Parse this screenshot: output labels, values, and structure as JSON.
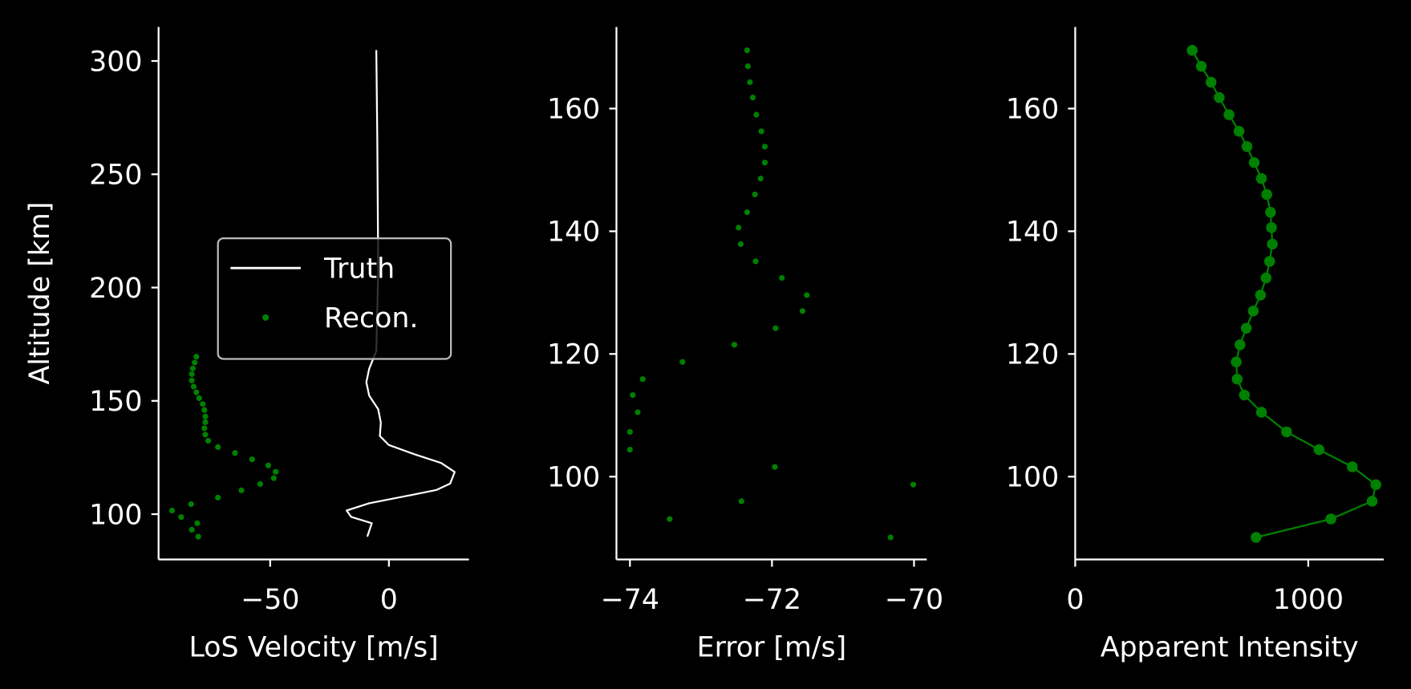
{
  "chart_data": [
    {
      "type": "line",
      "xlabel": "LoS Velocity [m/s]",
      "ylabel": "Altitude [km]",
      "xlim": [
        -97,
        33.7
      ],
      "ylim": [
        80,
        315
      ],
      "xticks": [
        {
          "value": -50,
          "label": "−50"
        },
        0
      ],
      "yticks": [
        100,
        150,
        200,
        250,
        300
      ],
      "legend": "center right",
      "series": [
        {
          "name": "Truth",
          "color": "#ffffff",
          "mode": "line",
          "x": [
            -5.3,
            -4.9,
            -4.5,
            -5.3,
            -8.3,
            -9.5,
            -8.3,
            -4.5,
            -3.4,
            -3.8,
            0,
            10.6,
            22,
            27.7,
            25.8,
            20.1,
            6.8,
            -8.3,
            -17.8,
            -15.9,
            -7.2,
            -9.1
          ],
          "y": [
            304.8,
            267.1,
            207.7,
            172,
            164.2,
            158.2,
            152.3,
            146.3,
            140.4,
            134.5,
            130.5,
            126.5,
            122.6,
            118.6,
            113.5,
            110.7,
            107.9,
            104.8,
            101.6,
            98.8,
            96,
            90.1
          ]
        },
        {
          "name": "Recon.",
          "color": "#008000",
          "mode": "markers",
          "x": [
            -80.3,
            -83,
            -80.7,
            -87.5,
            -91.3,
            -83.3,
            -72,
            -62.1,
            -54.2,
            -48.5,
            -47.7,
            -50.8,
            -57.6,
            -64.8,
            -72,
            -76.1,
            -77.3,
            -77.7,
            -77.3,
            -77.3,
            -77.7,
            -78.4,
            -79.9,
            -81.1,
            -82.2,
            -83,
            -83,
            -82.6,
            -81.8,
            -81.1
          ],
          "y": [
            90.1,
            93.1,
            96,
            98.7,
            101.6,
            104.4,
            107.3,
            110.5,
            113.3,
            115.9,
            118.7,
            121.5,
            124.2,
            127,
            129.6,
            132.4,
            135.1,
            137.9,
            140.6,
            143.1,
            146,
            148.6,
            151.2,
            153.8,
            156.3,
            159,
            161.8,
            164.3,
            166.9,
            169.5
          ]
        }
      ]
    },
    {
      "type": "scatter",
      "xlabel": "Error [m/s]",
      "xlim": [
        -74.19,
        -69.82
      ],
      "ylim": [
        86.5,
        173.3
      ],
      "xticks": [
        {
          "value": -74,
          "label": "−74"
        },
        {
          "value": -72,
          "label": "−72"
        },
        {
          "value": -70,
          "label": "−70"
        }
      ],
      "yticks": [
        100,
        120,
        140,
        160
      ],
      "series": [
        {
          "color": "#008000",
          "mode": "markers",
          "x": [
            -70.33,
            -73.44,
            -72.43,
            -70.01,
            -71.96,
            -74.0,
            -74.0,
            -73.89,
            -73.96,
            -73.82,
            -73.26,
            -72.53,
            -71.95,
            -71.57,
            -71.51,
            -71.86,
            -72.23,
            -72.44,
            -72.47,
            -72.35,
            -72.24,
            -72.16,
            -72.1,
            -72.1,
            -72.15,
            -72.22,
            -72.27,
            -72.31,
            -72.34,
            -72.35
          ],
          "y": [
            90.1,
            93.1,
            96,
            98.7,
            101.6,
            104.4,
            107.3,
            110.5,
            113.3,
            115.9,
            118.7,
            121.5,
            124.2,
            127,
            129.6,
            132.4,
            135.1,
            137.9,
            140.6,
            143.1,
            146,
            148.6,
            151.2,
            153.8,
            156.3,
            159,
            161.8,
            164.3,
            166.9,
            169.5
          ]
        }
      ]
    },
    {
      "type": "line",
      "xlabel": "Apparent Intensity",
      "xlim": [
        0,
        1324
      ],
      "ylim": [
        86.5,
        173.3
      ],
      "xticks": [
        0,
        1000
      ],
      "yticks": [
        100,
        120,
        140,
        160
      ],
      "series": [
        {
          "color": "#008000",
          "mode": "line+markers",
          "x": [
            776,
            1097,
            1274,
            1290,
            1189,
            1046,
            907,
            799,
            726,
            695,
            691,
            707,
            734,
            764,
            795,
            819,
            834,
            846,
            842,
            838,
            822,
            799,
            768,
            737,
            703,
            660,
            618,
            583,
            541,
            502
          ],
          "y": [
            90.1,
            93.1,
            96,
            98.7,
            101.6,
            104.4,
            107.3,
            110.5,
            113.3,
            115.9,
            118.7,
            121.5,
            124.2,
            127,
            129.6,
            132.4,
            135.1,
            137.9,
            140.6,
            143.1,
            146,
            148.6,
            151.2,
            153.8,
            156.3,
            159,
            161.8,
            164.3,
            166.9,
            169.5
          ]
        }
      ]
    }
  ]
}
